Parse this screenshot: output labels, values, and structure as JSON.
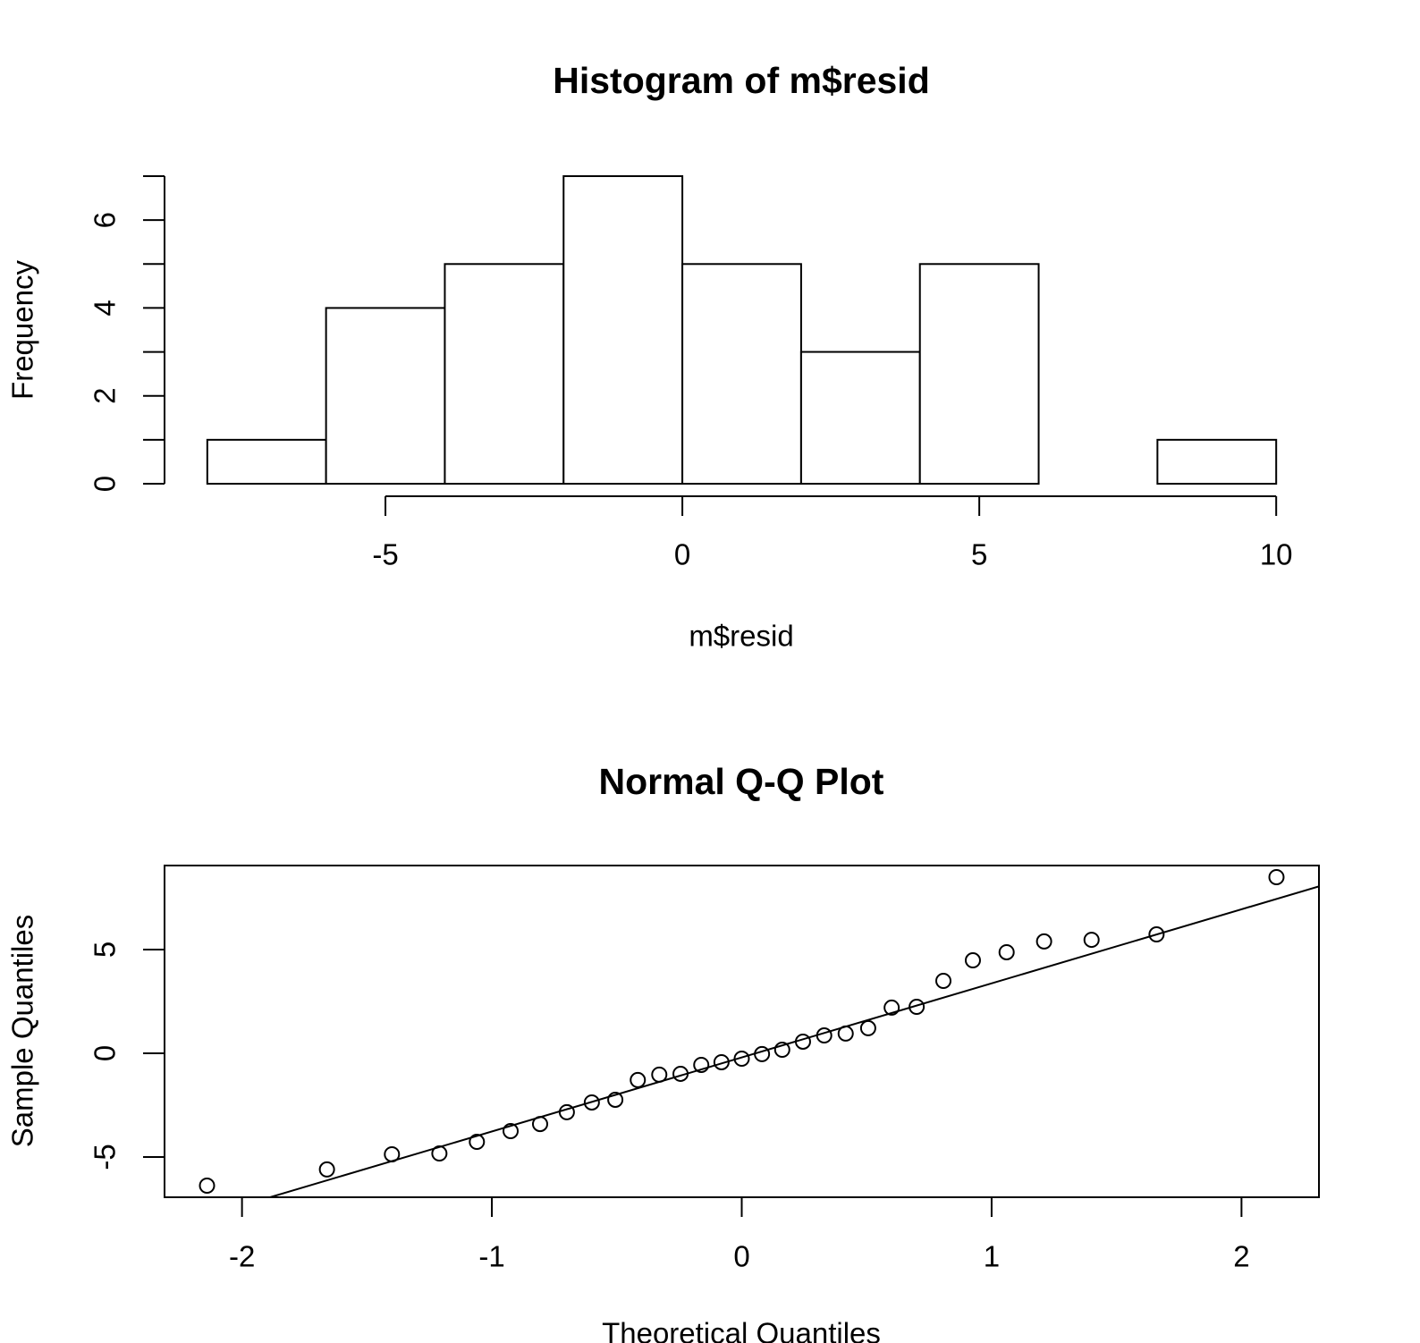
{
  "chart_data": [
    {
      "type": "histogram",
      "title": "Histogram of m$resid",
      "xlabel": "m$resid",
      "ylabel": "Frequency",
      "bins": [
        -8,
        -6,
        -4,
        -2,
        0,
        2,
        4,
        6,
        8,
        10
      ],
      "counts": [
        1,
        4,
        5,
        7,
        5,
        3,
        5,
        0,
        1
      ],
      "color": "#ffffff",
      "xlim": [
        -8.72,
        10.72
      ],
      "ylim": [
        0,
        7
      ],
      "xticks": [
        -5,
        0,
        5,
        10
      ],
      "yticks": [
        0,
        2,
        4,
        6
      ],
      "yminor_ticks": [
        1,
        3,
        5,
        7
      ]
    },
    {
      "type": "qq",
      "title": "Normal Q-Q Plot",
      "xlabel": "Theoretical Quantiles",
      "ylabel": "Sample Quantiles",
      "x": [
        -2.14,
        -1.66,
        -1.4,
        -1.21,
        -1.06,
        -0.925,
        -0.807,
        -0.7,
        -0.6,
        -0.506,
        -0.416,
        -0.33,
        -0.245,
        -0.162,
        -0.081,
        0,
        0.081,
        0.162,
        0.245,
        0.33,
        0.416,
        0.506,
        0.6,
        0.7,
        0.807,
        0.925,
        1.06,
        1.21,
        1.4,
        1.66,
        2.14
      ],
      "values": [
        -6.38,
        -5.6,
        -4.87,
        -4.83,
        -4.27,
        -3.75,
        -3.41,
        -2.84,
        -2.37,
        -2.24,
        -1.29,
        -1.03,
        -0.99,
        -0.56,
        -0.43,
        -0.26,
        -0.04,
        0.17,
        0.56,
        0.86,
        0.95,
        1.21,
        2.2,
        2.24,
        3.49,
        4.48,
        4.87,
        5.39,
        5.47,
        5.73,
        8.49
      ],
      "reference_line": {
        "intercept": -0.2,
        "slope": 3.57
      },
      "xlim": [
        -2.31,
        2.31
      ],
      "ylim": [
        -6.94,
        9.05
      ],
      "xticks": [
        -2,
        -1,
        0,
        1,
        2
      ],
      "yticks": [
        -5,
        0,
        5
      ]
    }
  ]
}
